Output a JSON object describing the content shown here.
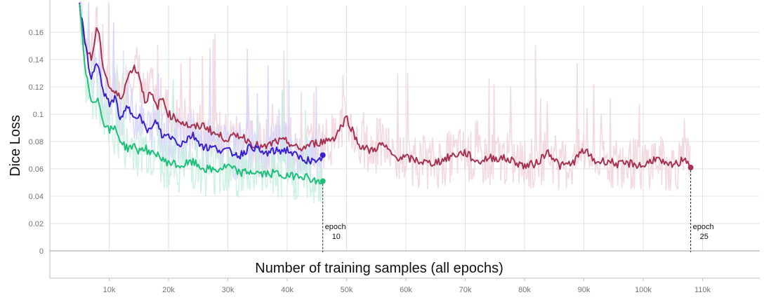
{
  "chart_data": {
    "type": "line",
    "title": "",
    "xlabel": "Number of training samples (all epochs)",
    "ylabel": "Dice Loss",
    "xlim": [
      0,
      120000
    ],
    "ylim": [
      0,
      0.18
    ],
    "x_ticks": [
      10000,
      20000,
      30000,
      40000,
      50000,
      60000,
      70000,
      80000,
      90000,
      100000,
      110000
    ],
    "x_tick_labels": [
      "10k",
      "20k",
      "30k",
      "40k",
      "50k",
      "60k",
      "70k",
      "80k",
      "90k",
      "100k",
      "110k"
    ],
    "y_ticks": [
      0,
      0.02,
      0.04,
      0.06,
      0.08,
      0.1,
      0.12,
      0.14,
      0.16
    ],
    "y_tick_labels": [
      "0",
      "0.02",
      "0.04",
      "0.06",
      "0.08",
      "0.1",
      "0.12",
      "0.14",
      "0.16"
    ],
    "grid": true,
    "series": [
      {
        "color": "#a5334f",
        "raw_color": "#f0d4da",
        "x": [
          5000,
          6000,
          7000,
          8000,
          9000,
          10000,
          11000,
          12000,
          13000,
          14000,
          15000,
          16000,
          17000,
          18000,
          19000,
          20000,
          22000,
          24000,
          26000,
          28000,
          30000,
          32000,
          34000,
          36000,
          38000,
          40000,
          42000,
          44000,
          46000,
          48000,
          50000,
          52000,
          54000,
          56000,
          58000,
          60000,
          62000,
          64000,
          66000,
          68000,
          70000,
          72000,
          74000,
          76000,
          78000,
          80000,
          82000,
          84000,
          86000,
          88000,
          90000,
          92000,
          94000,
          96000,
          98000,
          100000,
          102000,
          104000,
          106000,
          107000,
          108000
        ],
        "y": [
          0.18,
          0.15,
          0.14,
          0.165,
          0.135,
          0.12,
          0.115,
          0.112,
          0.125,
          0.135,
          0.13,
          0.11,
          0.115,
          0.105,
          0.112,
          0.1,
          0.095,
          0.09,
          0.092,
          0.085,
          0.082,
          0.085,
          0.079,
          0.075,
          0.08,
          0.08,
          0.074,
          0.078,
          0.08,
          0.083,
          0.098,
          0.078,
          0.073,
          0.078,
          0.069,
          0.068,
          0.066,
          0.064,
          0.066,
          0.07,
          0.072,
          0.065,
          0.068,
          0.068,
          0.066,
          0.062,
          0.064,
          0.073,
          0.062,
          0.064,
          0.074,
          0.065,
          0.066,
          0.063,
          0.064,
          0.062,
          0.068,
          0.062,
          0.064,
          0.069,
          0.061
        ]
      },
      {
        "color": "#3a1fcf",
        "raw_color": "#d5d3fb",
        "x": [
          5000,
          6000,
          7000,
          8000,
          9000,
          10000,
          11000,
          12000,
          13000,
          14000,
          15000,
          16000,
          17000,
          18000,
          19000,
          20000,
          22000,
          24000,
          26000,
          28000,
          30000,
          32000,
          34000,
          36000,
          38000,
          40000,
          42000,
          44000,
          45000,
          46000
        ],
        "y": [
          0.18,
          0.15,
          0.125,
          0.14,
          0.115,
          0.108,
          0.112,
          0.095,
          0.105,
          0.1,
          0.1,
          0.09,
          0.088,
          0.095,
          0.083,
          0.085,
          0.078,
          0.085,
          0.076,
          0.075,
          0.073,
          0.07,
          0.077,
          0.071,
          0.073,
          0.074,
          0.068,
          0.066,
          0.063,
          0.07
        ]
      },
      {
        "color": "#1fbf7a",
        "raw_color": "#c8f0de",
        "x": [
          5000,
          6000,
          7000,
          8000,
          9000,
          10000,
          11000,
          12000,
          13000,
          14000,
          15000,
          16000,
          17000,
          18000,
          19000,
          20000,
          22000,
          24000,
          26000,
          28000,
          30000,
          32000,
          34000,
          36000,
          38000,
          40000,
          42000,
          44000,
          45000,
          46000
        ],
        "y": [
          0.18,
          0.13,
          0.11,
          0.112,
          0.095,
          0.088,
          0.09,
          0.08,
          0.075,
          0.077,
          0.073,
          0.076,
          0.07,
          0.072,
          0.066,
          0.065,
          0.062,
          0.065,
          0.06,
          0.059,
          0.062,
          0.057,
          0.058,
          0.056,
          0.057,
          0.054,
          0.056,
          0.053,
          0.05,
          0.051
        ]
      }
    ],
    "annotations": [
      {
        "x": 46000,
        "y": 0.051,
        "lines": [
          "epoch",
          "10"
        ]
      },
      {
        "x": 108000,
        "y": 0.061,
        "lines": [
          "epoch",
          "25"
        ]
      }
    ]
  }
}
